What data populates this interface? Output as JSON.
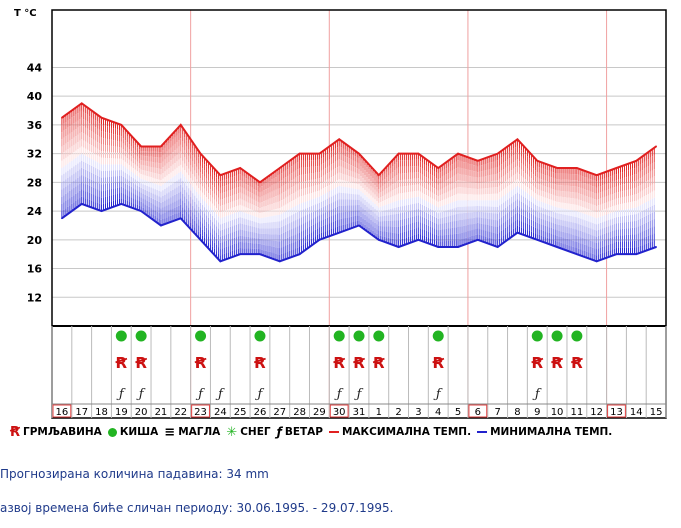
{
  "chart_data": {
    "type": "line",
    "y_unit_label": "T °C",
    "ylim": [
      8,
      52
    ],
    "y_ticks": [
      12,
      16,
      20,
      24,
      28,
      32,
      36,
      40,
      44
    ],
    "days": [
      "16",
      "17",
      "18",
      "19",
      "20",
      "21",
      "22",
      "23",
      "24",
      "25",
      "26",
      "27",
      "28",
      "29",
      "30",
      "31",
      "1",
      "2",
      "3",
      "4",
      "5",
      "6",
      "7",
      "8",
      "9",
      "10",
      "11",
      "12",
      "13",
      "14",
      "15"
    ],
    "boxed_days": [
      "16",
      "23",
      "30",
      "6",
      "13"
    ],
    "series": [
      {
        "name": "МАКСИМАЛНА ТЕМП.",
        "color": "#e02020",
        "values": [
          37,
          39,
          37,
          36,
          33,
          33,
          36,
          32,
          29,
          30,
          28,
          30,
          32,
          32,
          34,
          32,
          29,
          32,
          32,
          30,
          32,
          31,
          32,
          34,
          31,
          30,
          30,
          29,
          30,
          31,
          33
        ]
      },
      {
        "name": "МИНИМАЛНА ТЕМП.",
        "color": "#2222cc",
        "values": [
          23,
          25,
          24,
          25,
          24,
          22,
          23,
          20,
          17,
          18,
          18,
          17,
          18,
          20,
          21,
          22,
          20,
          19,
          20,
          19,
          19,
          20,
          19,
          21,
          20,
          19,
          18,
          17,
          18,
          18,
          19
        ]
      }
    ],
    "events": {
      "rain": [
        "19",
        "20",
        "23",
        "26",
        "30",
        "31",
        "1",
        "4",
        "9",
        "10",
        "11"
      ],
      "thunder": [
        "19",
        "20",
        "23",
        "26",
        "30",
        "31",
        "1",
        "4",
        "9",
        "10",
        "11"
      ],
      "wind": [
        "19",
        "20",
        "23",
        "24",
        "26",
        "30",
        "31",
        "4",
        "9"
      ]
    },
    "grid": true
  },
  "legend": {
    "thunder_label": "ГРМЉАВИНА",
    "rain_label": "КИША",
    "fog_label": "МАГЛА",
    "snow_label": "СНЕГ",
    "wind_label": "ВЕТАР",
    "max_label": "МАКСИМАЛНА ТЕМП.",
    "min_label": "МИНИМАЛНА ТЕМП."
  },
  "info": {
    "precip_text": "Прогнозирана количина падавина:  34  mm",
    "period_text": "азвој времена биће сличан периоду: 30.06.1995. - 29.07.1995."
  },
  "colors": {
    "max_line": "#e02020",
    "min_line": "#2222cc",
    "rain_dot": "#22b422",
    "thunder": "#cc1111",
    "grid": "#c8c8c8",
    "red_grid": "#f0a0a0",
    "info_text": "#1f3a8a"
  }
}
